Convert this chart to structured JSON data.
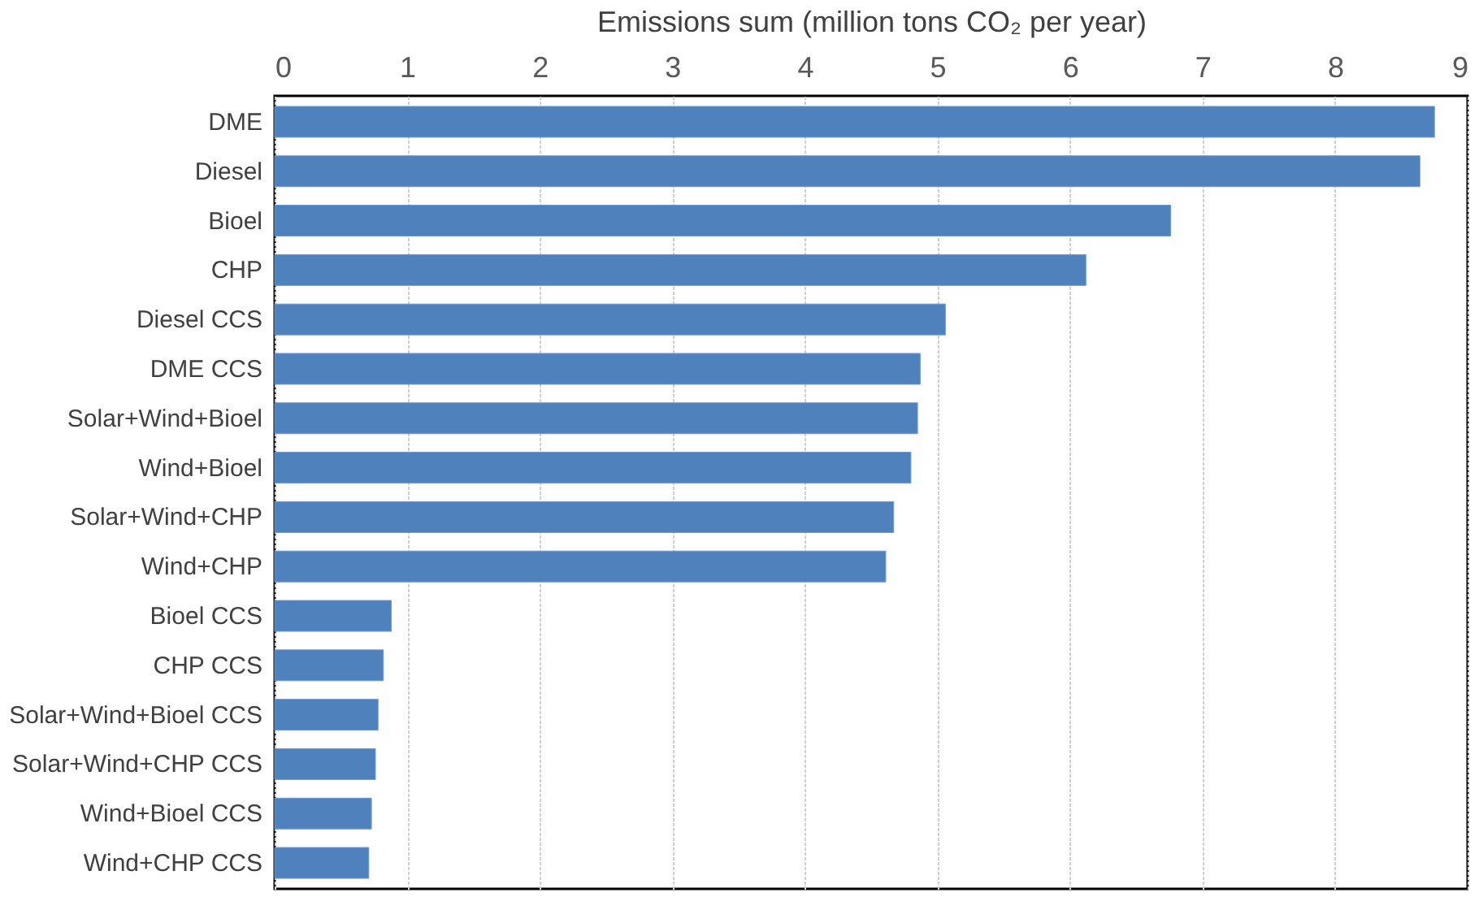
{
  "chart_data": {
    "type": "bar",
    "orientation": "horizontal",
    "xlabel": "Emissions sum (million tons CO₂ per year)",
    "categories": [
      "DME",
      "Diesel",
      "Bioel",
      "CHP",
      "Diesel CCS",
      "DME CCS",
      "Solar+Wind+Bioel",
      "Wind+Bioel",
      "Solar+Wind+CHP",
      "Wind+CHP",
      "Bioel CCS",
      "CHP CCS",
      "Solar+Wind+Bioel CCS",
      "Solar+Wind+CHP CCS",
      "Wind+Bioel CCS",
      "Wind+CHP CCS"
    ],
    "values": [
      8.75,
      8.64,
      6.76,
      6.12,
      5.06,
      4.87,
      4.85,
      4.8,
      4.67,
      4.61,
      0.88,
      0.82,
      0.78,
      0.76,
      0.73,
      0.71
    ],
    "color": "#4f81bd",
    "xlim": [
      0,
      9
    ],
    "xticks": [
      0,
      1,
      2,
      3,
      4,
      5,
      6,
      7,
      8,
      9
    ],
    "grid": "x"
  }
}
